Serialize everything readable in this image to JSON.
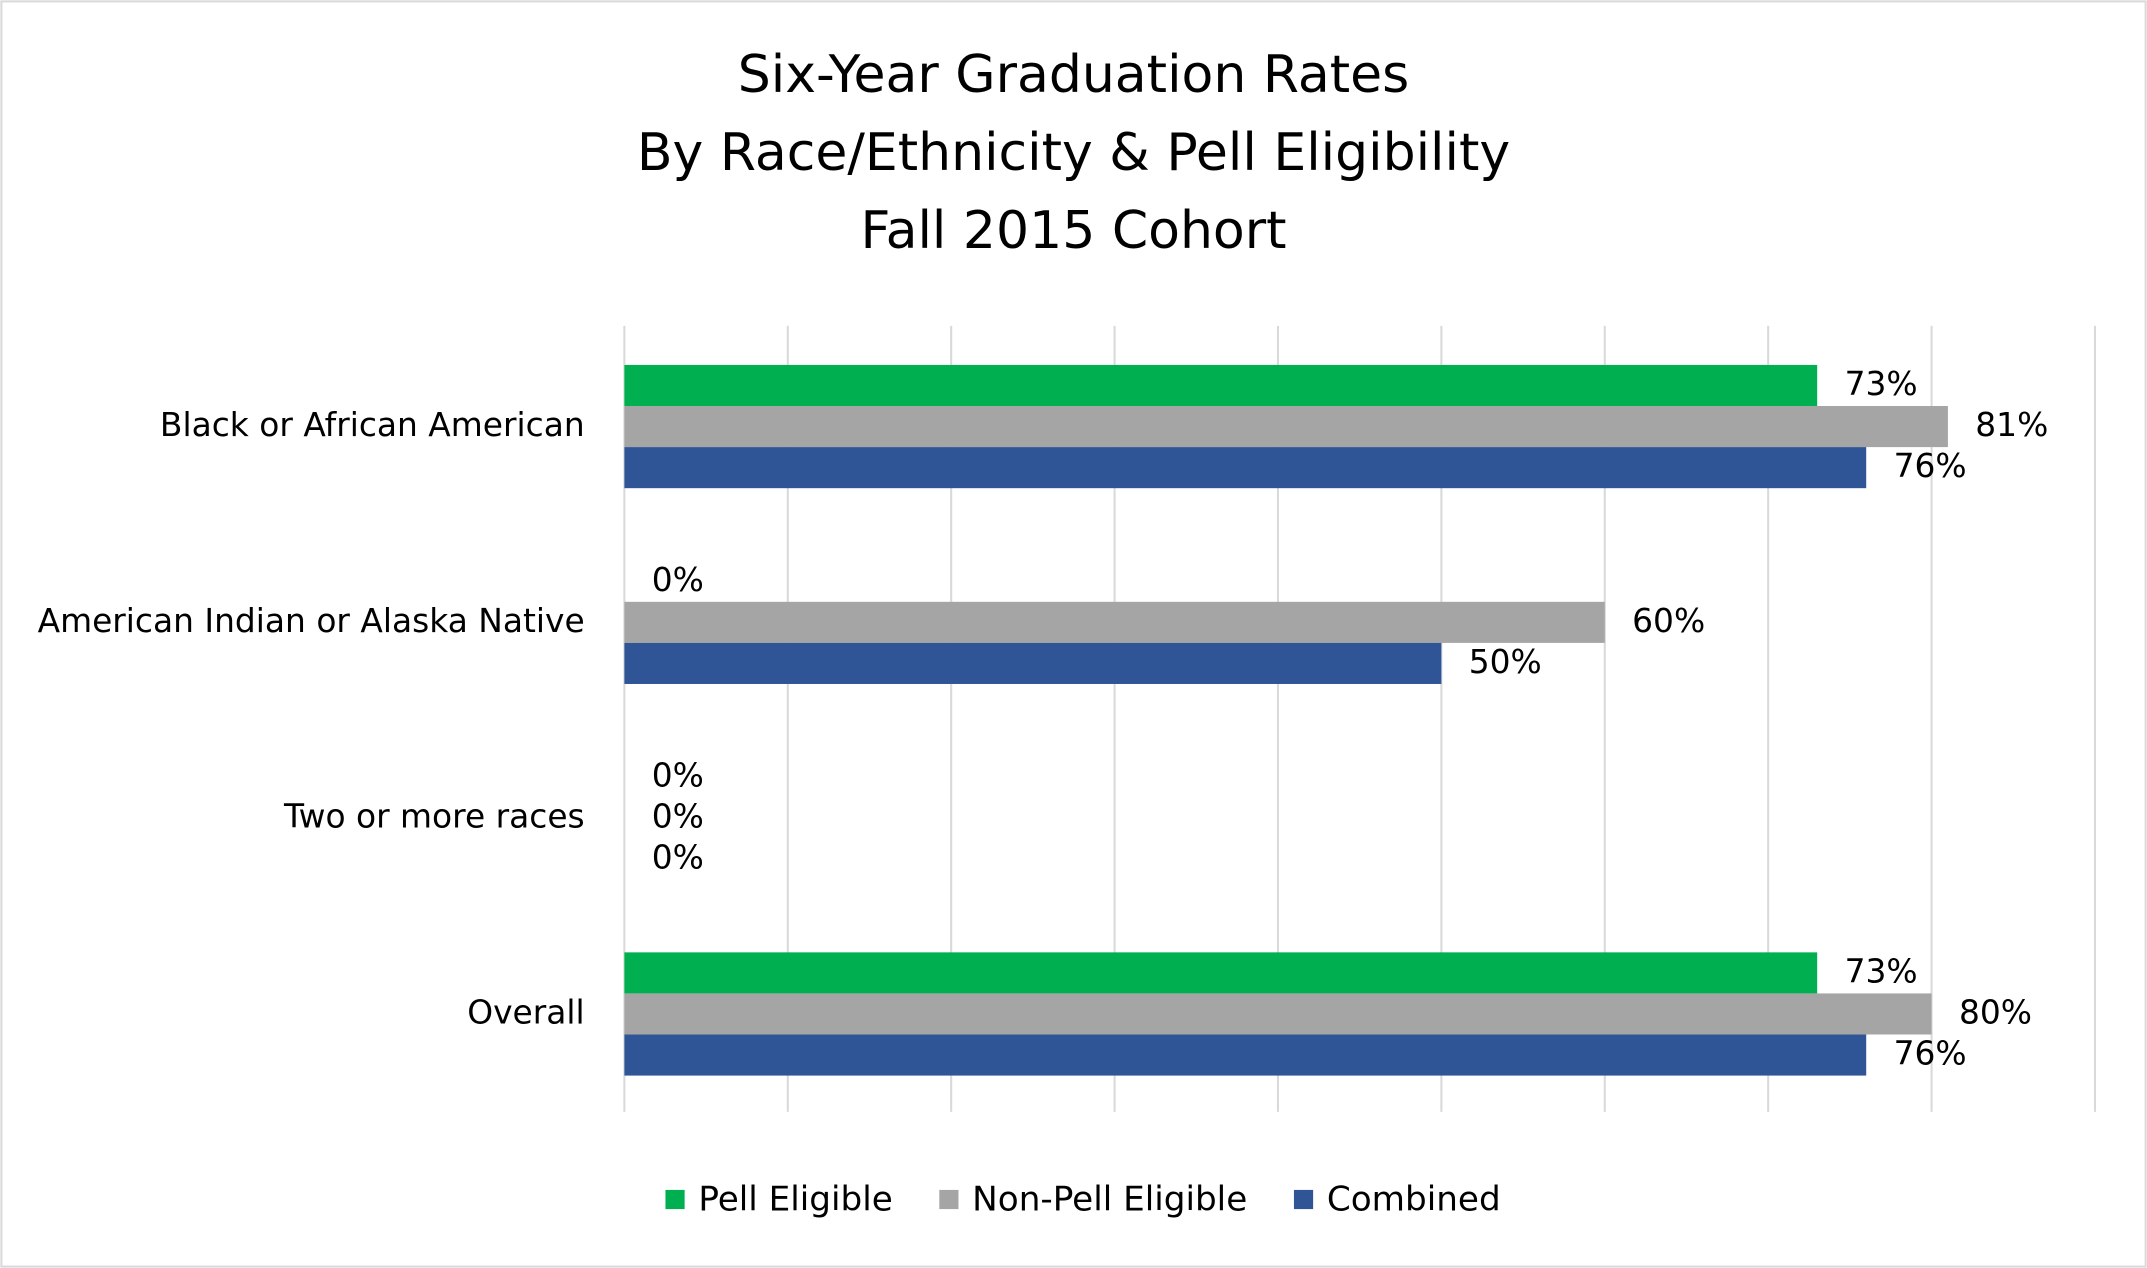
{
  "chart_data": {
    "type": "hbar",
    "title": [
      "Six-Year Graduation Rates",
      "By Race/Ethnicity & Pell Eligibility",
      "Fall 2015 Cohort"
    ],
    "categories": [
      "Black or African American",
      "American Indian or Alaska Native",
      "Two or more races",
      "Overall"
    ],
    "series": [
      {
        "name": "Pell Eligible",
        "color": "#00b050",
        "values": [
          73,
          0,
          0,
          73
        ],
        "value_labels": [
          "73%",
          "0%",
          "0%",
          "73%"
        ]
      },
      {
        "name": "Non-Pell Eligible",
        "color": "#a5a5a5",
        "values": [
          81,
          60,
          0,
          80
        ],
        "value_labels": [
          "81%",
          "60%",
          "0%",
          "80%"
        ]
      },
      {
        "name": "Combined",
        "color": "#2f5597",
        "values": [
          76,
          50,
          0,
          76
        ],
        "value_labels": [
          "76%",
          "50%",
          "0%",
          "76%"
        ]
      }
    ],
    "xlim": [
      0,
      90
    ],
    "xticks": [
      0,
      10,
      20,
      30,
      40,
      50,
      60,
      70,
      80,
      90
    ],
    "grid": true,
    "legend": "bottom"
  }
}
